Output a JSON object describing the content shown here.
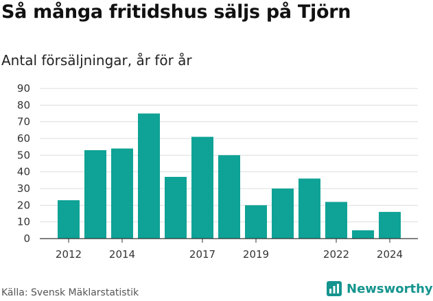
{
  "header": {
    "title": "Så många fritidshus säljs på Tjörn",
    "subtitle": "Antal försäljningar, år för år"
  },
  "footer": {
    "source": "Källa: Svensk Mäklarstatistik",
    "brand": "Newsworthy"
  },
  "colors": {
    "bar": "#0fa296",
    "grid": "#dddddd",
    "axis": "#333333",
    "brand": "#14948e"
  },
  "chart_data": {
    "type": "bar",
    "title": "Så många fritidshus säljs på Tjörn",
    "subtitle": "Antal försäljningar, år för år",
    "categories": [
      "2012",
      "2013",
      "2014",
      "2015",
      "2016",
      "2017",
      "2018",
      "2019",
      "2020",
      "2021",
      "2022",
      "2023",
      "2024"
    ],
    "values": [
      23,
      53,
      54,
      75,
      37,
      61,
      50,
      20,
      30,
      36,
      22,
      5,
      16
    ],
    "x_tick_labels": [
      "2012",
      "2014",
      "2017",
      "2019",
      "2022",
      "2024"
    ],
    "yticks": [
      0,
      10,
      20,
      30,
      40,
      50,
      60,
      70,
      80,
      90
    ],
    "ylim": [
      0,
      90
    ],
    "xlabel": "",
    "ylabel": "",
    "grid": true,
    "legend": "none"
  }
}
